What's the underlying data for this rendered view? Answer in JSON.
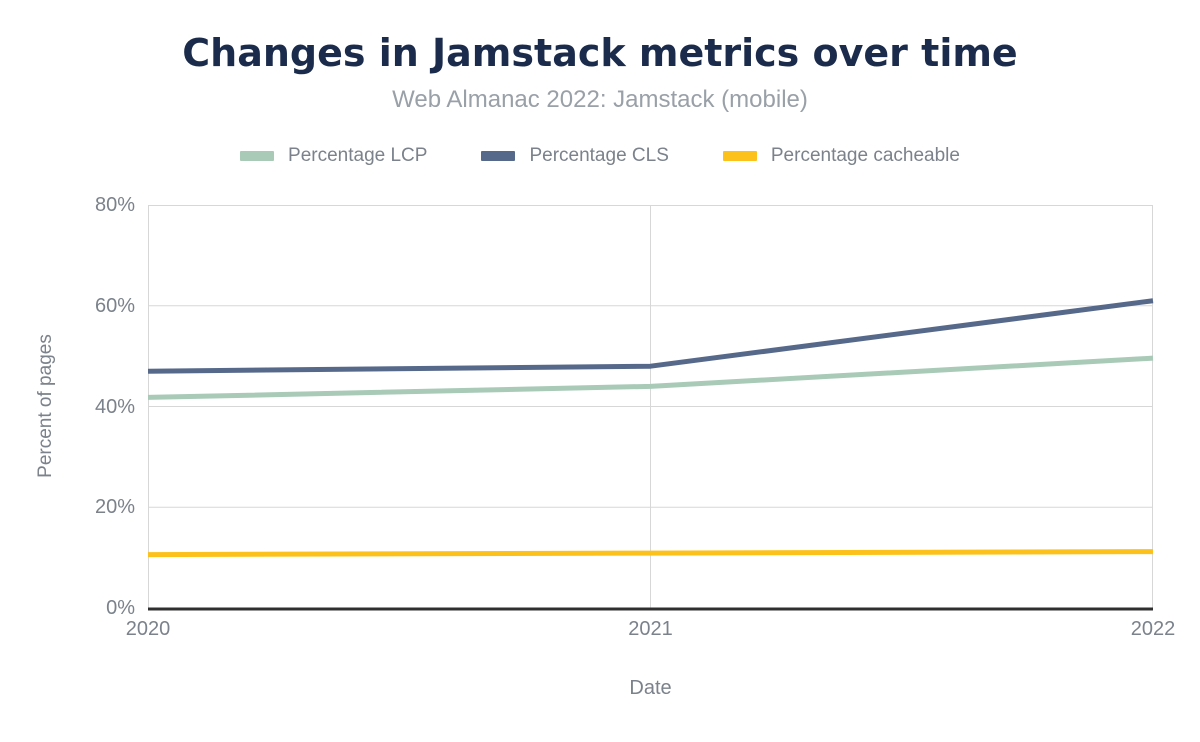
{
  "chart_data": {
    "type": "line",
    "title": "Changes in Jamstack metrics over time",
    "subtitle": "Web Almanac 2022: Jamstack (mobile)",
    "xlabel": "Date",
    "ylabel": "Percent of pages",
    "categories": [
      "2020",
      "2021",
      "2022"
    ],
    "series": [
      {
        "name": "Percentage LCP",
        "color": "#a8cab7",
        "values": [
          41.8,
          44.0,
          49.6
        ]
      },
      {
        "name": "Percentage CLS",
        "color": "#56698b",
        "values": [
          47.0,
          48.0,
          61.0
        ]
      },
      {
        "name": "Percentage cacheable",
        "color": "#fcc21b",
        "values": [
          10.6,
          10.9,
          11.2
        ]
      }
    ],
    "ylim": [
      0,
      80
    ],
    "yticks": [
      {
        "label": "0%",
        "value": 0
      },
      {
        "label": "20%",
        "value": 20
      },
      {
        "label": "40%",
        "value": 40
      },
      {
        "label": "60%",
        "value": 60
      },
      {
        "label": "80%",
        "value": 80
      }
    ],
    "grid": true,
    "legend_position": "top"
  },
  "colors": {
    "background": "#ffffff",
    "title": "#1b2b4b",
    "subtitle": "#99a0a8",
    "axis_text": "#7b828b",
    "gridline": "#d7d7d7",
    "baseline": "#2f2f2f"
  }
}
